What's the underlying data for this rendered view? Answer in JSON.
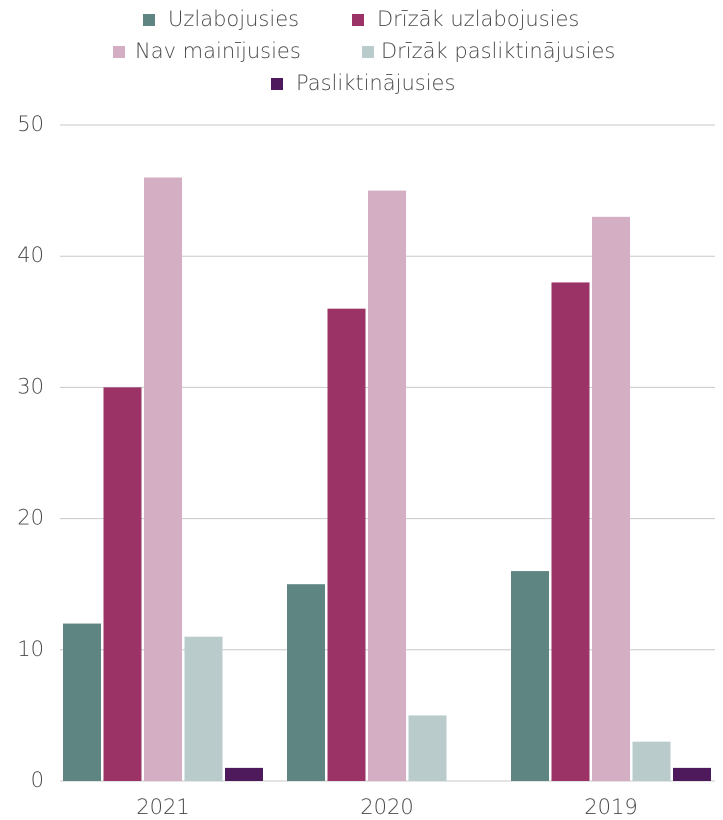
{
  "chart_data": {
    "type": "bar",
    "categories": [
      "2021",
      "2020",
      "2019"
    ],
    "series": [
      {
        "name": "Uzlabojusies",
        "color": "#5f8583",
        "values": [
          12,
          15,
          16
        ]
      },
      {
        "name": "Drīzāk uzlabojusies",
        "color": "#9b3367",
        "values": [
          30,
          36,
          38
        ]
      },
      {
        "name": "Nav mainījusies",
        "color": "#d4afc3",
        "values": [
          46,
          45,
          43
        ]
      },
      {
        "name": "Drīzāk pasliktinājusies",
        "color": "#b9cbcb",
        "values": [
          11,
          5,
          3
        ]
      },
      {
        "name": "Pasliktinājusies",
        "color": "#4f1a5b",
        "values": [
          1,
          0,
          1
        ]
      }
    ],
    "ylim": [
      0,
      50
    ],
    "yticks": [
      0,
      10,
      20,
      30,
      40,
      50
    ],
    "grid": true,
    "legend": "top"
  }
}
